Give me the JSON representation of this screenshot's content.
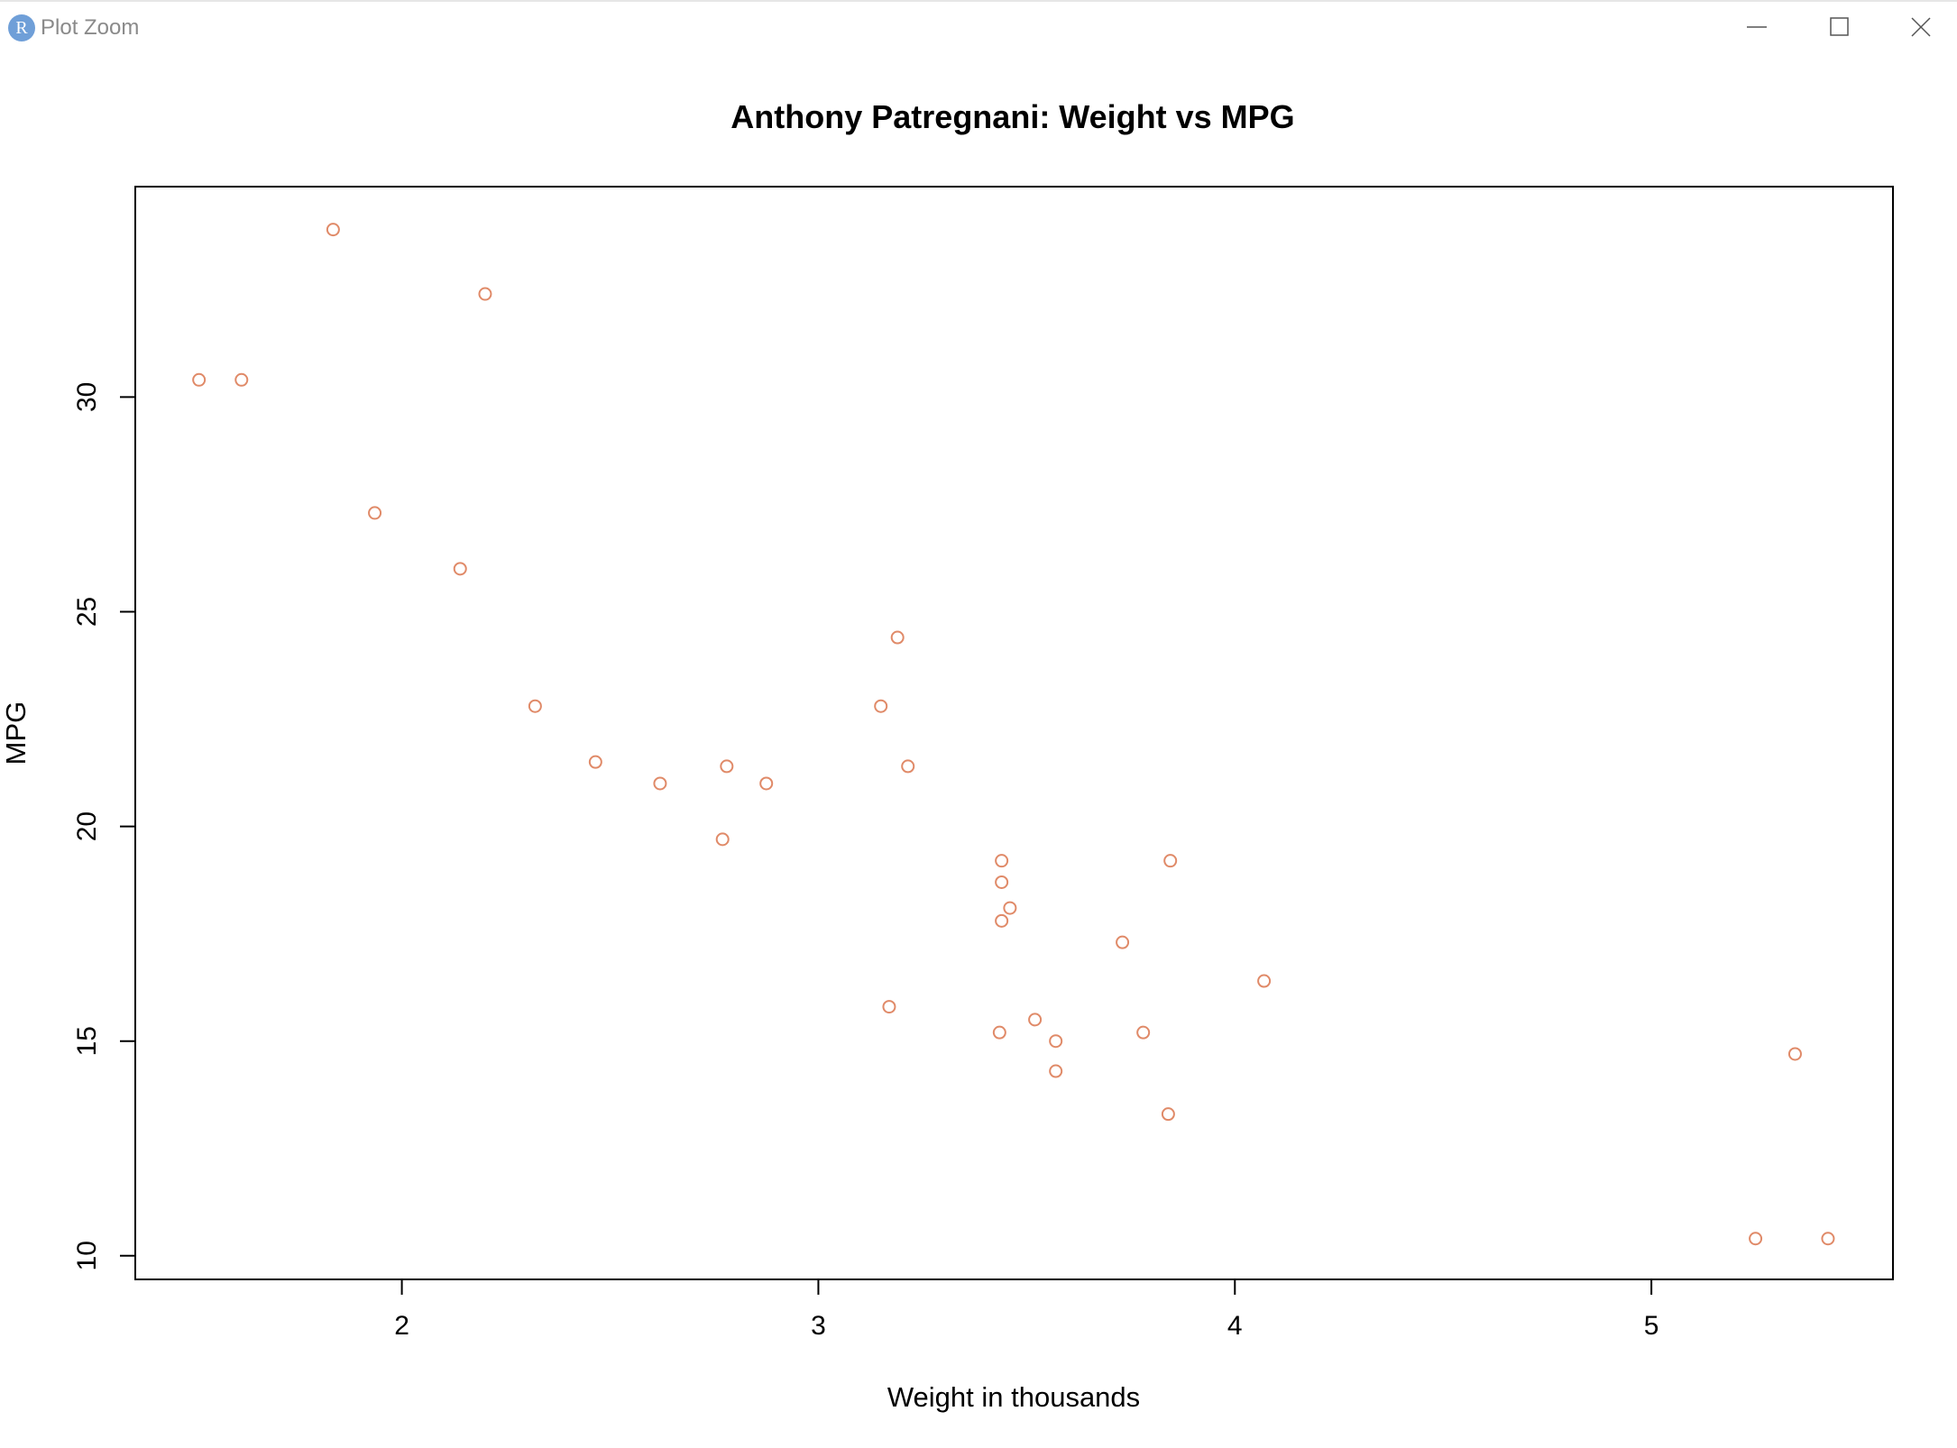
{
  "window": {
    "app_icon_letter": "R",
    "title": "Plot Zoom",
    "controls": [
      "minimize-icon",
      "maximize-icon",
      "close-icon"
    ]
  },
  "colors": {
    "point": "#e08a68",
    "axis": "#000000",
    "app_icon": "#6f9fd8"
  },
  "chart_data": {
    "type": "scatter",
    "title": "Anthony Patregnani: Weight vs MPG",
    "xlabel": "Weight in thousands",
    "ylabel": "MPG",
    "xlim": [
      1.36,
      5.58
    ],
    "ylim": [
      9.45,
      34.9
    ],
    "x_ticks": [
      2,
      3,
      4,
      5
    ],
    "y_ticks": [
      10,
      15,
      20,
      25,
      30
    ],
    "x_tick_labels": [
      "2",
      "3",
      "4",
      "5"
    ],
    "y_tick_labels": [
      "10",
      "15",
      "20",
      "25",
      "30"
    ],
    "points": [
      {
        "x": 2.62,
        "y": 21.0
      },
      {
        "x": 2.875,
        "y": 21.0
      },
      {
        "x": 2.32,
        "y": 22.8
      },
      {
        "x": 3.215,
        "y": 21.4
      },
      {
        "x": 3.44,
        "y": 18.7
      },
      {
        "x": 3.46,
        "y": 18.1
      },
      {
        "x": 3.57,
        "y": 14.3
      },
      {
        "x": 3.19,
        "y": 24.4
      },
      {
        "x": 3.15,
        "y": 22.8
      },
      {
        "x": 3.44,
        "y": 19.2
      },
      {
        "x": 3.44,
        "y": 17.8
      },
      {
        "x": 4.07,
        "y": 16.4
      },
      {
        "x": 3.73,
        "y": 17.3
      },
      {
        "x": 3.78,
        "y": 15.2
      },
      {
        "x": 5.25,
        "y": 10.4
      },
      {
        "x": 5.424,
        "y": 10.4
      },
      {
        "x": 5.345,
        "y": 14.7
      },
      {
        "x": 2.2,
        "y": 32.4
      },
      {
        "x": 1.615,
        "y": 30.4
      },
      {
        "x": 1.835,
        "y": 33.9
      },
      {
        "x": 2.465,
        "y": 21.5
      },
      {
        "x": 3.52,
        "y": 15.5
      },
      {
        "x": 3.435,
        "y": 15.2
      },
      {
        "x": 3.84,
        "y": 13.3
      },
      {
        "x": 3.845,
        "y": 19.2
      },
      {
        "x": 1.935,
        "y": 27.3
      },
      {
        "x": 2.14,
        "y": 26.0
      },
      {
        "x": 1.513,
        "y": 30.4
      },
      {
        "x": 3.17,
        "y": 15.8
      },
      {
        "x": 2.77,
        "y": 19.7
      },
      {
        "x": 3.57,
        "y": 15.0
      },
      {
        "x": 2.78,
        "y": 21.4
      }
    ],
    "marker": "open-circle",
    "grid": false,
    "legend": "none"
  }
}
